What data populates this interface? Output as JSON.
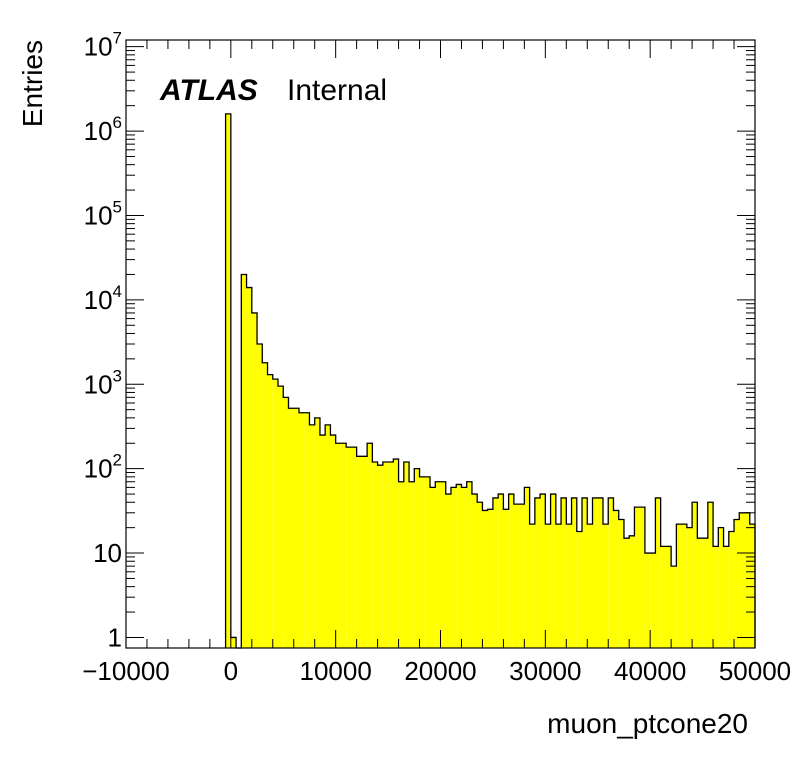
{
  "chart_data": {
    "type": "histogram",
    "title": "",
    "xlabel": "muon_ptcone20",
    "ylabel": "Entries",
    "label_bold": "ATLAS",
    "label_text": "Internal",
    "fill_color": "#ffff00",
    "line_color": "#000000",
    "xlim": [
      -10000,
      50000
    ],
    "ylim": [
      0.75,
      12000000
    ],
    "yscale": "log",
    "grid": false,
    "legend": "none",
    "x_ticks": [
      {
        "value": -10000,
        "label": "−10000"
      },
      {
        "value": 0,
        "label": "0"
      },
      {
        "value": 10000,
        "label": "10000"
      },
      {
        "value": 20000,
        "label": "20000"
      },
      {
        "value": 30000,
        "label": "30000"
      },
      {
        "value": 40000,
        "label": "40000"
      },
      {
        "value": 50000,
        "label": "50000"
      }
    ],
    "y_ticks": [
      {
        "value": 1,
        "base": "1",
        "exp": ""
      },
      {
        "value": 10,
        "base": "10",
        "exp": ""
      },
      {
        "value": 100,
        "base": "10",
        "exp": "2"
      },
      {
        "value": 1000,
        "base": "10",
        "exp": "3"
      },
      {
        "value": 10000,
        "base": "10",
        "exp": "4"
      },
      {
        "value": 100000,
        "base": "10",
        "exp": "5"
      },
      {
        "value": 1000000,
        "base": "10",
        "exp": "6"
      },
      {
        "value": 10000000,
        "base": "10",
        "exp": "7"
      }
    ],
    "bin_width": 500,
    "bins_x_start": [
      -500,
      0,
      500,
      1000,
      1500,
      2000,
      2500,
      3000,
      3500,
      4000,
      4500,
      5000,
      5500,
      6000,
      6500,
      7000,
      7500,
      8000,
      8500,
      9000,
      9500,
      10000,
      10500,
      11000,
      11500,
      12000,
      12500,
      13000,
      13500,
      14000,
      14500,
      15000,
      15500,
      16000,
      16500,
      17000,
      17500,
      18000,
      18500,
      19000,
      19500,
      20000,
      20500,
      21000,
      21500,
      22000,
      22500,
      23000,
      23500,
      24000,
      24500,
      25000,
      25500,
      26000,
      26500,
      27000,
      27500,
      28000,
      28500,
      29000,
      29500,
      30000,
      30500,
      31000,
      31500,
      32000,
      32500,
      33000,
      33500,
      34000,
      34500,
      35000,
      35500,
      36000,
      36500,
      37000,
      37500,
      38000,
      38500,
      39000,
      39500,
      40000,
      40500,
      41000,
      41500,
      42000,
      42500,
      43000,
      43500,
      44000,
      44500,
      45000,
      45500,
      46000,
      46500,
      47000,
      47500,
      48000,
      48500,
      49000,
      49500
    ],
    "values": [
      1600000,
      1,
      0,
      20000,
      14000,
      7000,
      3000,
      1800,
      1300,
      1150,
      950,
      700,
      520,
      520,
      460,
      460,
      330,
      400,
      250,
      330,
      250,
      200,
      200,
      180,
      180,
      140,
      140,
      200,
      120,
      110,
      120,
      120,
      130,
      70,
      120,
      70,
      100,
      80,
      80,
      60,
      70,
      70,
      50,
      60,
      65,
      60,
      70,
      50,
      40,
      32,
      33,
      45,
      50,
      33,
      50,
      38,
      38,
      60,
      22,
      45,
      50,
      22,
      50,
      22,
      45,
      22,
      45,
      18,
      45,
      22,
      45,
      45,
      22,
      45,
      32,
      25,
      15,
      16,
      35,
      35,
      10,
      10,
      45,
      12,
      12,
      7,
      22,
      22,
      20,
      40,
      15,
      15,
      40,
      12,
      20,
      12,
      18,
      25,
      30,
      30,
      22
    ]
  }
}
